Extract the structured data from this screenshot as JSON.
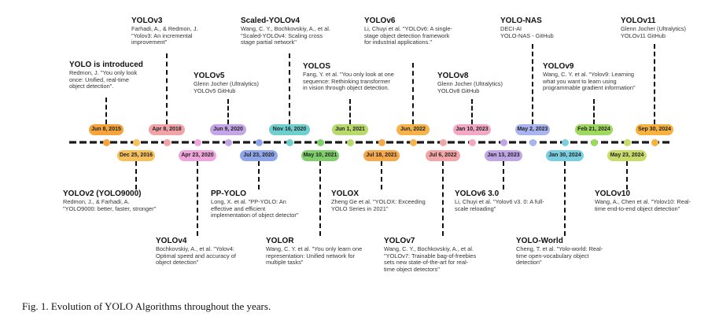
{
  "figure": {
    "caption": "Fig. 1.  Evolution of YOLO Algorithms throughout the years.",
    "axis_color": "#1a1a1a"
  },
  "milestones_above": [
    {
      "id": "yolo",
      "date": "Jun 8, 2015",
      "color": "#f4a43a",
      "title": "YOLO is introduced",
      "lines": [
        "Redmon, J. \"You only look",
        "once: Unified, real-time",
        "object detection\"."
      ]
    },
    {
      "id": "yolov3",
      "date": "Apr 8, 2018",
      "color": "#f2a3a8",
      "title": "YOLOv3",
      "lines": [
        "Farhadi, A., & Redmon, J.",
        "\"Yolov3: An incremental",
        "improvement\""
      ]
    },
    {
      "id": "yolov5",
      "date": "Jun 9, 2020",
      "color": "#c4a5e8",
      "title": "YOLOv5",
      "lines": [
        "Glenn Jocher (Ultralytics)",
        "YOLOv5 GitHub"
      ]
    },
    {
      "id": "scaled-yolov4",
      "date": "Nov 16, 2020",
      "color": "#6fcfcf",
      "title": "Scaled-YOLOv4",
      "lines": [
        "Wang, C. Y., Bochkovskiy, A., et al.",
        "\"Scaled-YOLOv4: Scaling cross",
        "stage partial network\""
      ]
    },
    {
      "id": "yolos",
      "date": "Jun 1, 2021",
      "color": "#b8d96b",
      "title": "YOLOS",
      "lines": [
        "Fang, Y. et al. \"You only look at one",
        "sequence: Rethinking transformer",
        "in vision through object detection."
      ]
    },
    {
      "id": "yolov6",
      "date": "Jun, 2022",
      "color": "#f5b34a",
      "title": "YOLOv6",
      "lines": [
        "Li, Chuyi et al. \"YOLOv6: A single-",
        "stage object detection framework",
        "for industrial applications.\""
      ]
    },
    {
      "id": "yolov8",
      "date": "Jan 10, 2023",
      "color": "#f3a8c4",
      "title": "YOLOv8",
      "lines": [
        "Glenn Jocher (Ultralytics)",
        "YOLOv8 GitHub"
      ]
    },
    {
      "id": "yolo-nas",
      "date": "May 2, 2023",
      "color": "#a9b4f0",
      "title": "YOLO-NAS",
      "lines": [
        "DECI-AI",
        "YOLO-NAS - GitHub"
      ]
    },
    {
      "id": "yolov9",
      "date": "Feb 21, 2024",
      "color": "#9ed85e",
      "title": "YOLOv9",
      "lines": [
        "Wang, C. Y. et al. \"Yolov9: Learning",
        "what you want to learn using",
        "programmable gradient information\""
      ]
    },
    {
      "id": "yolov11",
      "date": "Sep 30, 2024",
      "color": "#f7b13e",
      "title": "YOLOv11",
      "lines": [
        "Glenn Jocher (Ultralytics)",
        "YOLOv11 GitHub"
      ]
    }
  ],
  "milestones_below": [
    {
      "id": "yolov2",
      "date": "Dec 25, 2016",
      "color": "#f6c15a",
      "title": "YOLOv2 (YOLO9000)",
      "lines": [
        "Redmon, J., & Farhadi, A.",
        "\"YOLO9000: better, faster, stronger\""
      ]
    },
    {
      "id": "yolov4",
      "date": "Apr 23, 2020",
      "color": "#f0a6dc",
      "title": "YOLOv4",
      "lines": [
        "Bochkovskiy, A., et al. \"Yolov4:",
        "Optimal speed and accuracy of",
        "object detection\""
      ]
    },
    {
      "id": "pp-yolo",
      "date": "Jul 23, 2020",
      "color": "#8fa7ea",
      "title": "PP-YOLO",
      "lines": [
        "Long, X. et al. \"PP-YOLO: An",
        "effective and efficient",
        "implementation of object detector\""
      ]
    },
    {
      "id": "yolor",
      "date": "May 10, 2021",
      "color": "#7fcf6a",
      "title": "YOLOR",
      "lines": [
        "Wang, C. Y. et al. \"You only learn one",
        "representation: Unified network for",
        "multiple tasks\""
      ]
    },
    {
      "id": "yolox",
      "date": "Jul 18, 2021",
      "color": "#f5a94a",
      "title": "YOLOX",
      "lines": [
        "Zheng Ge et al. \"YOLOX: Exceeding",
        "YOLO Series in 2021\""
      ]
    },
    {
      "id": "yolov7",
      "date": "Jul 6, 2022",
      "color": "#f4a6a6",
      "title": "YOLOv7",
      "lines": [
        "Wang, C. Y., Bochkovskiy, A., et al.",
        "\"YOLOv7: Trainable bag-of-freebies",
        "sets new state-of-the-art for real-",
        "time object detectors\""
      ]
    },
    {
      "id": "yolov6-3",
      "date": "Jan 13, 2023",
      "color": "#c0a6e6",
      "title": "YOLOv6 3.0",
      "lines": [
        "Li, Chuyi et al. \"Yolov6 v3. 0: A full-",
        "scale reloading\""
      ]
    },
    {
      "id": "yolo-world",
      "date": "Jan 30, 2024",
      "color": "#79cfe0",
      "title": "YOLO-World",
      "lines": [
        "Cheng, T. et al. \"Yolo-world: Real-",
        "time open-vocabulary object",
        "detection\""
      ]
    },
    {
      "id": "yolov10",
      "date": "May 23, 2024",
      "color": "#c9dc6a",
      "title": "YOLOv10",
      "lines": [
        "Wang, A., Chen et al. \"Yolov10: Real-",
        "time end-to-end object detection\""
      ]
    }
  ]
}
